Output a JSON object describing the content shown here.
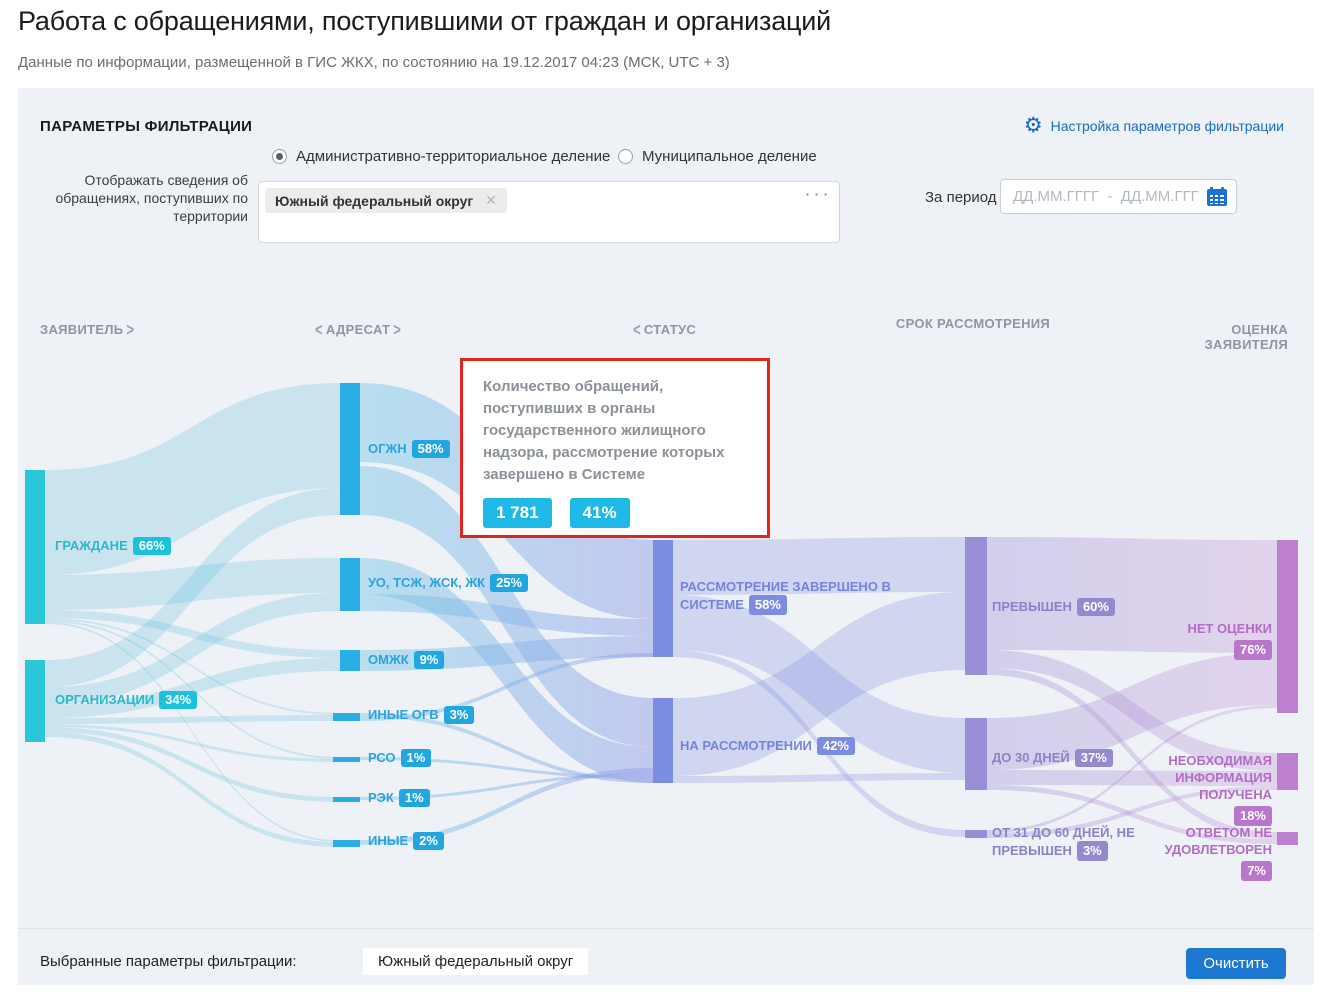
{
  "page": {
    "title": "Работа с обращениями, поступившими от граждан и организаций",
    "subtitle": "Данные по информации, размещенной в ГИС ЖКХ, по состоянию на 19.12.2017 04:23 (МСК, UTC + 3)"
  },
  "filter_panel": {
    "title": "ПАРАМЕТРЫ ФИЛЬТРАЦИИ",
    "settings_link": "Настройка параметров фильтрации",
    "division_options": [
      {
        "label": "Административно-территориальное деление",
        "selected": true
      },
      {
        "label": "Муниципальное деление",
        "selected": false
      }
    ],
    "territory_field": {
      "label": "Отображать сведения об обращениях, поступивших по территории",
      "selected_tag": "Южный федеральный округ"
    },
    "period_field": {
      "label": "За период",
      "placeholder": "ДД.ММ.ГГГГ  -  ДД.ММ.ГГГГ"
    }
  },
  "tooltip": {
    "text": "Количество обращений, поступивших в органы государственного жилищного надзора, рассмотрение которых завершено в Системе",
    "count": "1 781",
    "percent": "41%"
  },
  "chart_data": {
    "type": "sankey",
    "columns": [
      {
        "title": "ЗАЯВИТЕЛЬ",
        "color": "#2bc7d8",
        "nodes": [
          {
            "label": "ГРАЖДАНЕ",
            "pct": "66%"
          },
          {
            "label": "ОРГАНИЗАЦИИ",
            "pct": "34%"
          }
        ]
      },
      {
        "title": "АДРЕСАТ",
        "color": "#29ade4",
        "nodes": [
          {
            "label": "ОГЖН",
            "pct": "58%"
          },
          {
            "label": "УО, ТСЖ, ЖСК, ЖК",
            "pct": "25%"
          },
          {
            "label": "ОМЖК",
            "pct": "9%"
          },
          {
            "label": "ИНЫЕ ОГВ",
            "pct": "3%"
          },
          {
            "label": "РСО",
            "pct": "1%"
          },
          {
            "label": "РЭК",
            "pct": "1%"
          },
          {
            "label": "ИНЫЕ",
            "pct": "2%"
          }
        ]
      },
      {
        "title": "СТАТУС",
        "color": "#7b8ce2",
        "nodes": [
          {
            "label": "РАССМОТРЕНИЕ ЗАВЕРШЕНО В СИСТЕМЕ",
            "pct": "58%"
          },
          {
            "label": "НА РАССМОТРЕНИИ",
            "pct": "42%"
          }
        ]
      },
      {
        "title": "СРОК РАССМОТРЕНИЯ",
        "color": "#988fd6",
        "nodes": [
          {
            "label": "ПРЕВЫШЕН",
            "pct": "60%"
          },
          {
            "label": "ДО 30 ДНЕЙ",
            "pct": "37%"
          },
          {
            "label": "ОТ 31 ДО 60 ДНЕЙ, НЕ ПРЕВЫШЕН",
            "pct": "3%"
          }
        ]
      },
      {
        "title": "ОЦЕНКА ЗАЯВИТЕЛЯ",
        "color": "#bd80d0",
        "nodes": [
          {
            "label": "НЕТ ОЦЕНКИ",
            "pct": "76%"
          },
          {
            "label": "НЕОБХОДИМАЯ ИНФОРМАЦИЯ ПОЛУЧЕНА",
            "pct": "18%"
          },
          {
            "label": "ОТВЕТОМ НЕ УДОВЛЕТВОРЕН",
            "pct": "7%"
          }
        ]
      }
    ],
    "highlighted_flow": {
      "from": "ОГЖН",
      "to": "РАССМОТРЕНИЕ ЗАВЕРШЕНО В СИСТЕМЕ",
      "count": "1 781",
      "percent": "41%"
    }
  },
  "footer": {
    "label": "Выбранные параметры фильтрации:",
    "selected_tag": "Южный федеральный округ",
    "clear_button": "Очистить"
  },
  "icons": {
    "gear": "⚙",
    "close": "✕",
    "more": "▪ ▪ ▪",
    "chevron_left": "<",
    "chevron_right": ">"
  }
}
